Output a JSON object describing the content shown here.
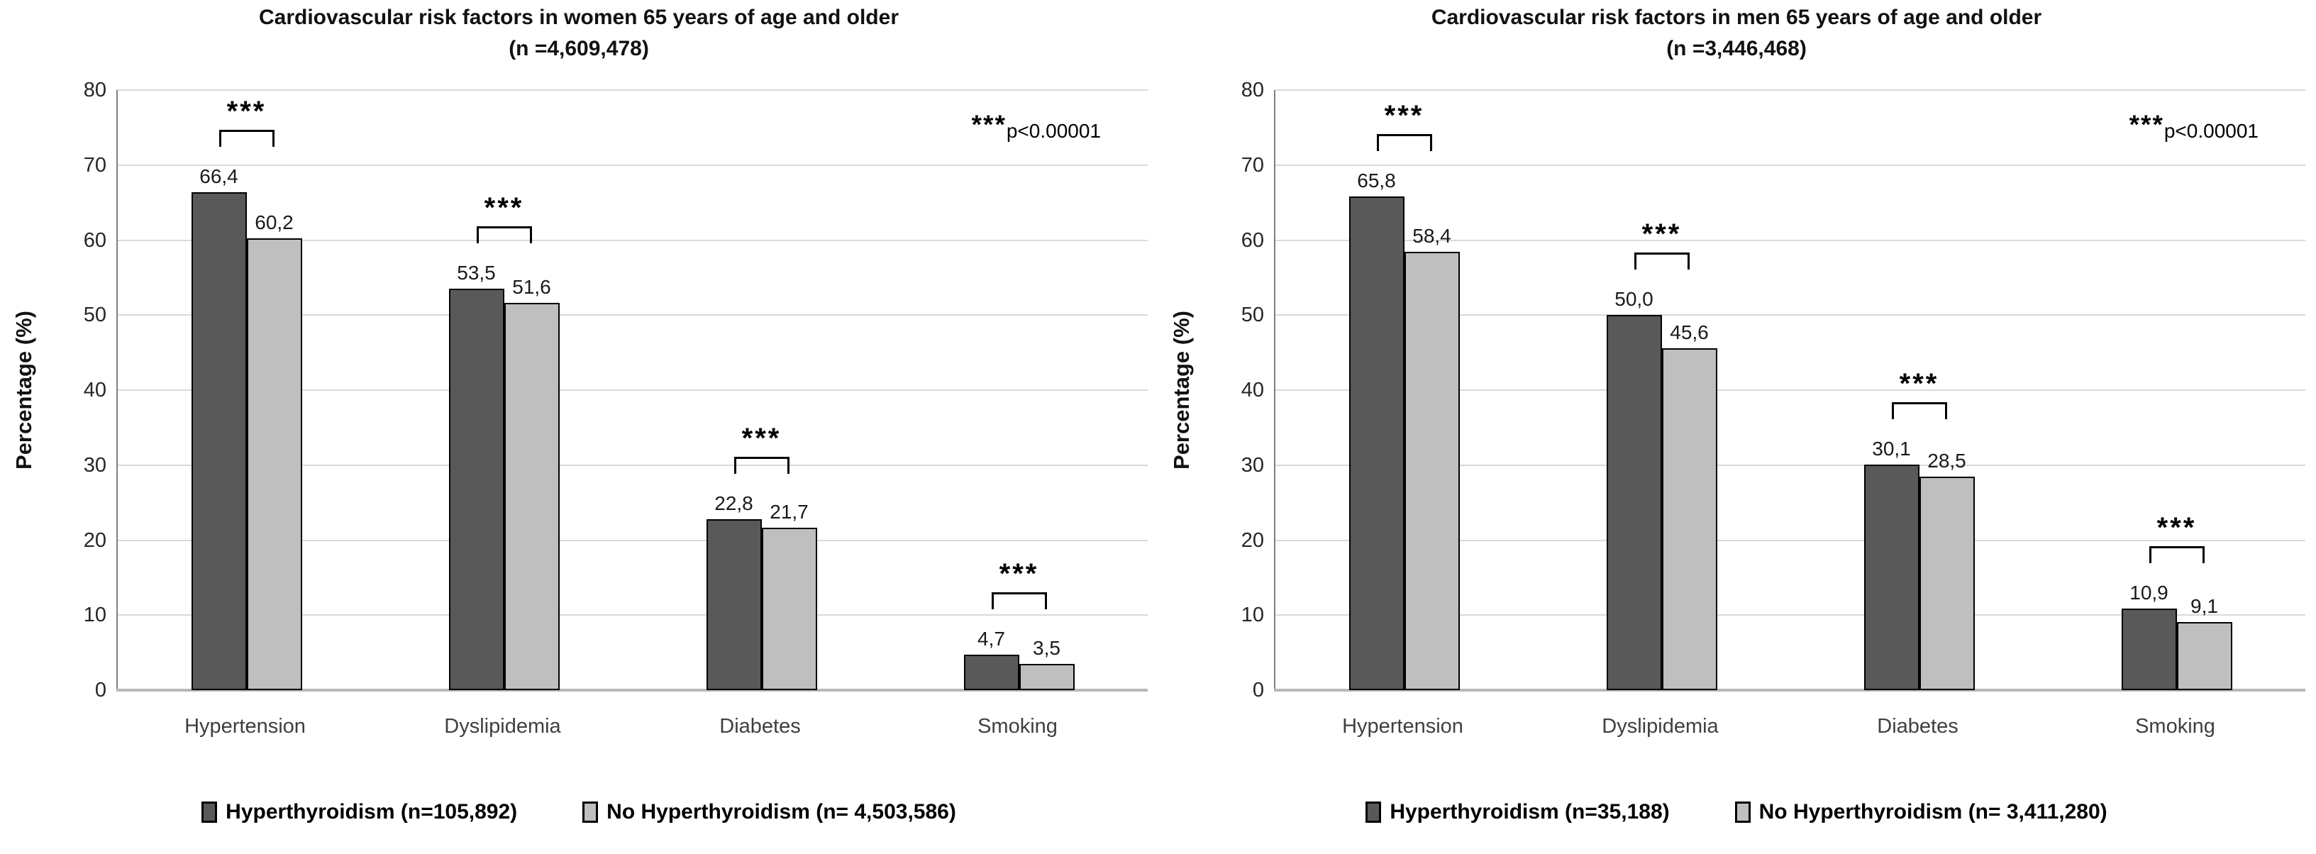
{
  "colors": {
    "series_dark": "#595959",
    "series_light": "#bfbfbf",
    "bar_border": "#000000",
    "gridline": "#d9d9d9",
    "axis_left_border": "#7f7f7f",
    "baseline": "#b8b8b8",
    "category_label": "#3f3f3f"
  },
  "chart_data": [
    {
      "type": "bar",
      "title_line1": "Cardiovascular risk factors in women 65 years of age and older",
      "title_line2": "(n =4,609,478)",
      "ylabel": "Percentage (%)",
      "ylim": [
        0,
        80
      ],
      "yticks": [
        0,
        10,
        20,
        30,
        40,
        50,
        60,
        70,
        80
      ],
      "grid": true,
      "legend_position": "bottom",
      "categories": [
        "Hypertension",
        "Dyslipidemia",
        "Diabetes",
        "Smoking"
      ],
      "series": [
        {
          "name": "Hyperthyroidism (n=105,892)",
          "values": [
            66.4,
            53.5,
            22.8,
            4.7
          ],
          "labels": [
            "66,4",
            "53,5",
            "22,8",
            "4,7"
          ]
        },
        {
          "name": "No Hyperthyroidism (n= 4,503,586)",
          "values": [
            60.2,
            51.6,
            21.7,
            3.5
          ],
          "labels": [
            "60,2",
            "51,6",
            "21,7",
            "3,5"
          ]
        }
      ],
      "significance_per_category": [
        "***",
        "***",
        "***",
        "***"
      ],
      "annotation": {
        "stars": "***",
        "text": "p<0.00001"
      }
    },
    {
      "type": "bar",
      "title_line1": "Cardiovascular risk factors in men 65 years of age and older",
      "title_line2": "(n =3,446,468)",
      "ylabel": "Percentage (%)",
      "ylim": [
        0,
        80
      ],
      "yticks": [
        0,
        10,
        20,
        30,
        40,
        50,
        60,
        70,
        80
      ],
      "grid": true,
      "legend_position": "bottom",
      "categories": [
        "Hypertension",
        "Dyslipidemia",
        "Diabetes",
        "Smoking"
      ],
      "series": [
        {
          "name": "Hyperthyroidism (n=35,188)",
          "values": [
            65.8,
            50.0,
            30.1,
            10.9
          ],
          "labels": [
            "65,8",
            "50,0",
            "30,1",
            "10,9"
          ]
        },
        {
          "name": "No Hyperthyroidism (n= 3,411,280)",
          "values": [
            58.4,
            45.6,
            28.5,
            9.1
          ],
          "labels": [
            "58,4",
            "45,6",
            "28,5",
            "9,1"
          ]
        }
      ],
      "significance_per_category": [
        "***",
        "***",
        "***",
        "***"
      ],
      "annotation": {
        "stars": "***",
        "text": "p<0.00001"
      }
    }
  ]
}
